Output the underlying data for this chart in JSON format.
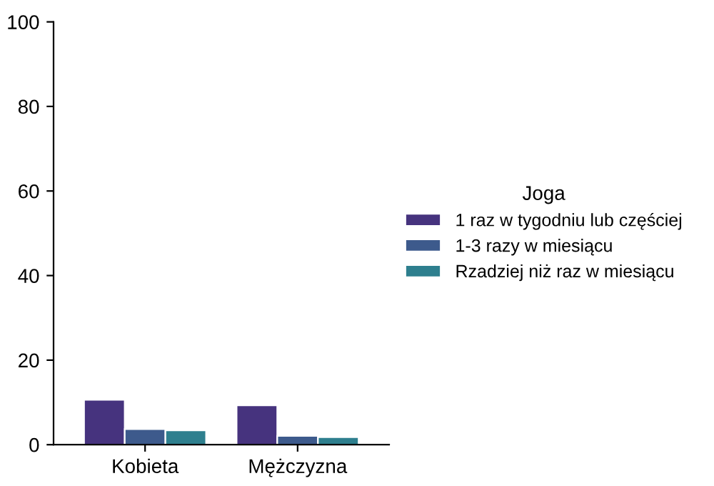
{
  "chart_data": {
    "type": "bar",
    "categories": [
      "Kobieta",
      "Mężczyzna"
    ],
    "series": [
      {
        "name": "1 raz w tygodniu lub częściej",
        "color": "#46337e",
        "values": [
          10.6,
          9.3
        ]
      },
      {
        "name": "1-3 razy w miesiącu",
        "color": "#3d5a8c",
        "values": [
          3.7,
          2.1
        ]
      },
      {
        "name": "Rzadziej niż raz w miesiącu",
        "color": "#2e7f8e",
        "values": [
          3.4,
          1.8
        ]
      }
    ],
    "legend_title": "Joga",
    "legend": "right",
    "ylim": [
      0,
      100
    ],
    "yticks": [
      0,
      20,
      40,
      60,
      80,
      100
    ],
    "grid": false
  }
}
